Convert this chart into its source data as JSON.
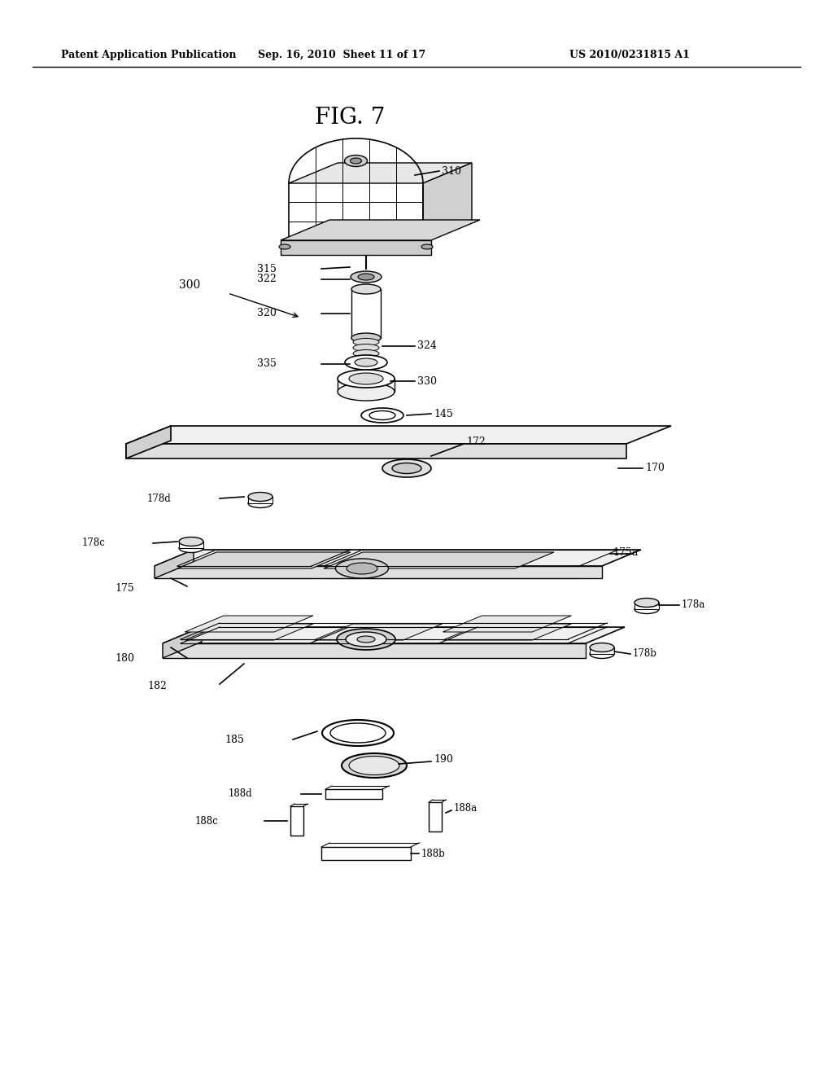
{
  "bg_color": "#ffffff",
  "header_left": "Patent Application Publication",
  "header_mid": "Sep. 16, 2010  Sheet 11 of 17",
  "header_right": "US 2010/0231815 A1",
  "fig_title": "FIG. 7"
}
